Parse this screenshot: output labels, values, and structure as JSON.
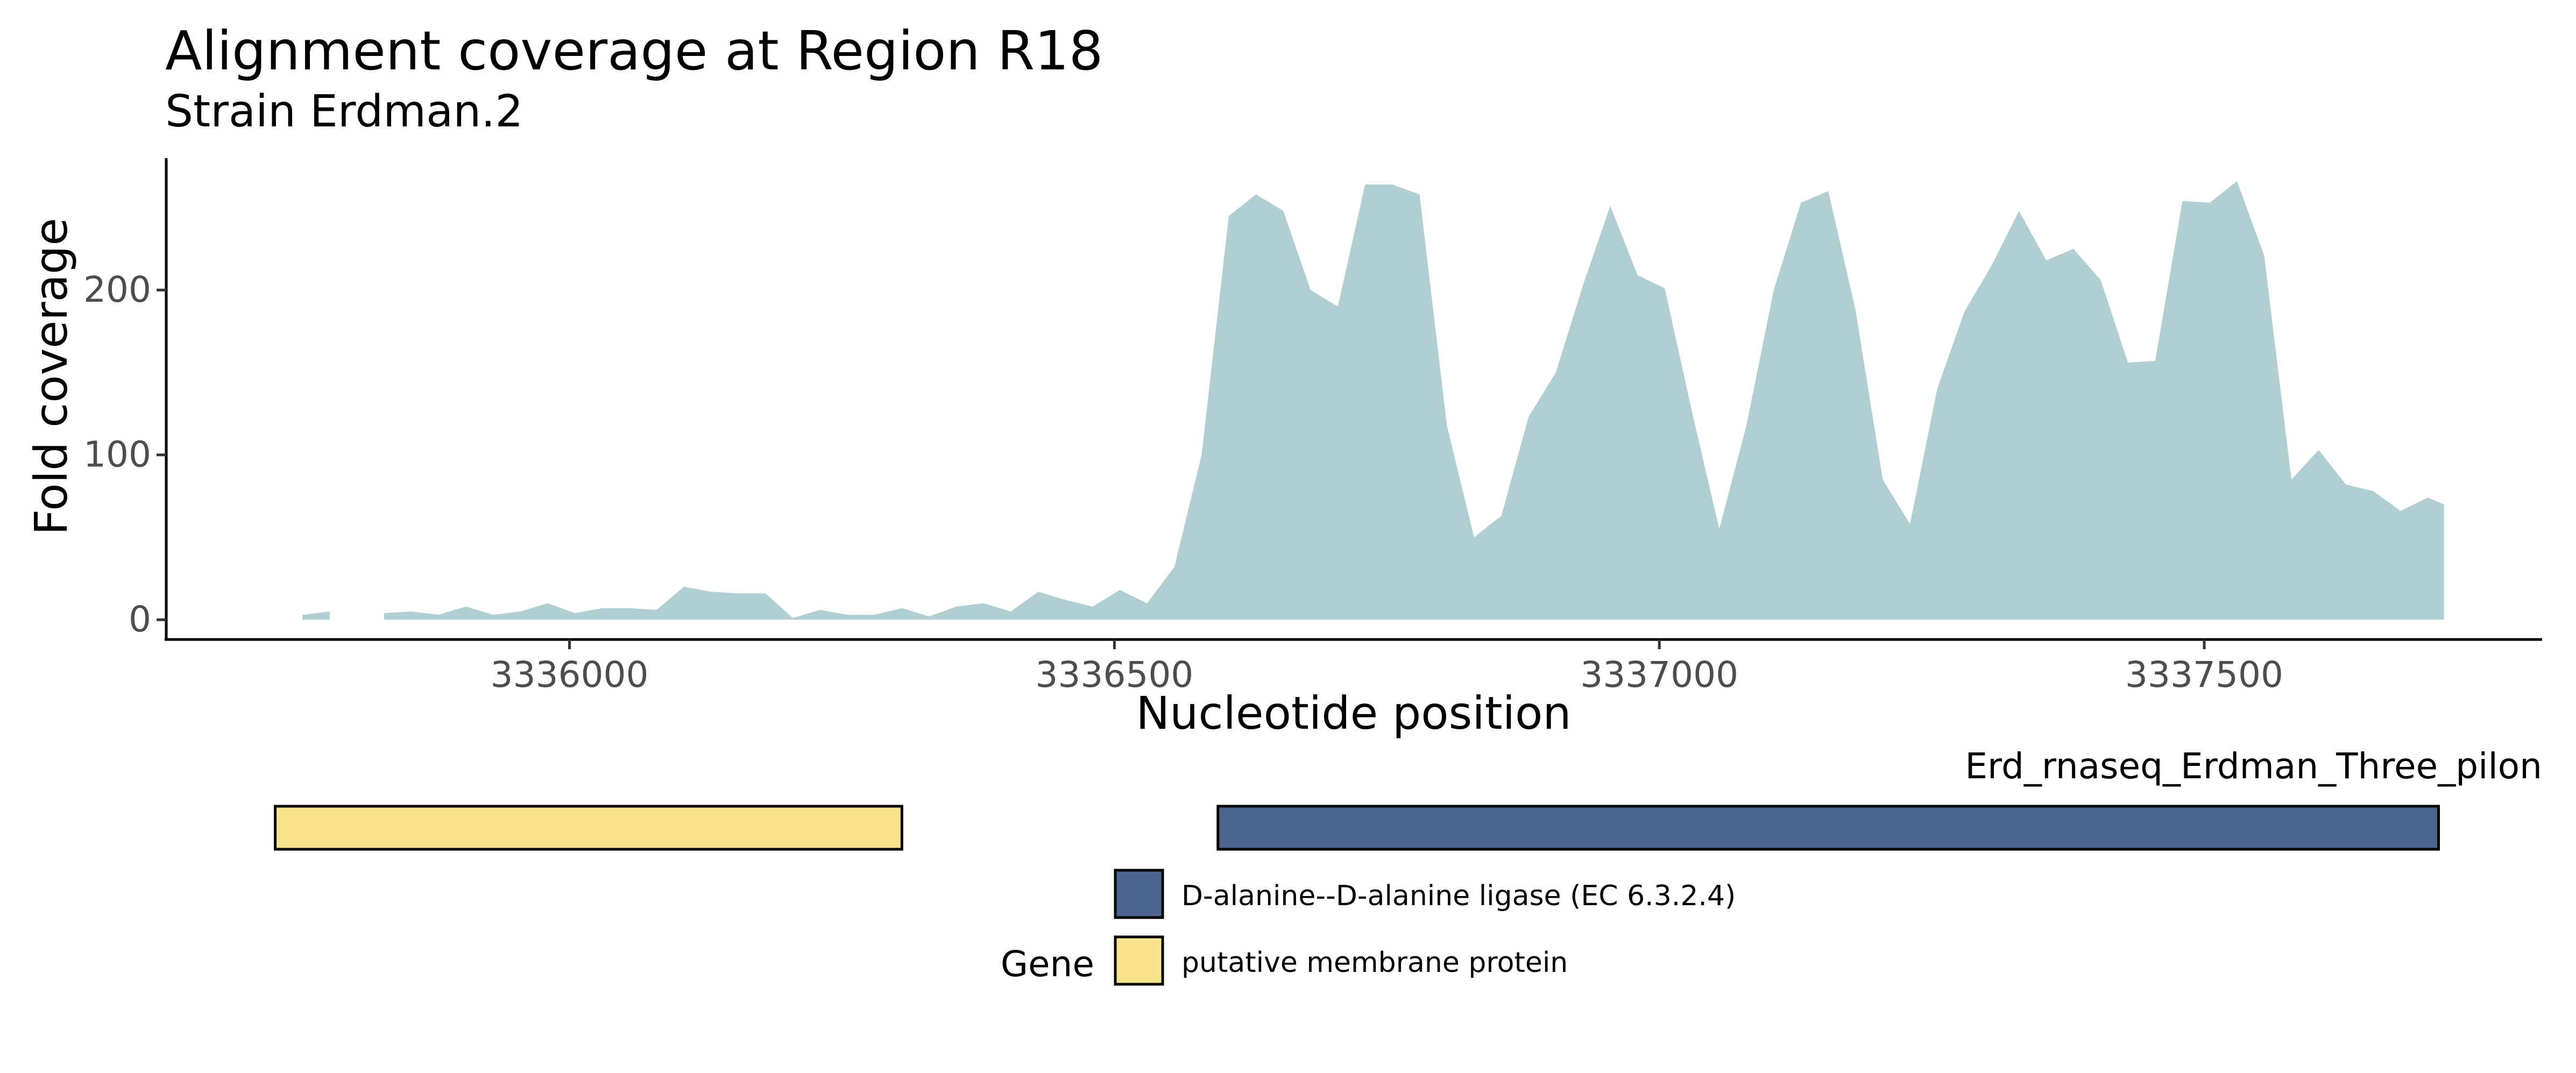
{
  "chart_data": {
    "type": "area",
    "title": "Alignment coverage at Region R18",
    "subtitle": "Strain Erdman.2",
    "xlabel": "Nucleotide position",
    "ylabel": "Fold coverage",
    "xlim": [
      3335630,
      3337810
    ],
    "ylim": [
      -12,
      280
    ],
    "x_ticks": [
      3336000,
      3336500,
      3337000,
      3337500
    ],
    "x_tick_labels": [
      "3336000",
      "3336500",
      "3337000",
      "3337500"
    ],
    "y_ticks": [
      0,
      100,
      200
    ],
    "y_tick_labels": [
      "0",
      "100",
      "200"
    ],
    "fill_color": "#b1cfd2",
    "segments": [
      {
        "x": [
          3335755,
          3335780
        ],
        "y": [
          3,
          5
        ]
      },
      {
        "x": [
          3335830,
          3335855,
          3335880,
          3335905,
          3335930,
          3335955,
          3335980,
          3336005,
          3336030,
          3336055,
          3336080,
          3336105,
          3336130,
          3336155,
          3336180,
          3336205,
          3336230,
          3336255,
          3336280,
          3336305,
          3336330,
          3336355,
          3336380,
          3336405,
          3336430,
          3336455,
          3336480,
          3336505,
          3336530,
          3336555,
          3336580,
          3336605,
          3336630,
          3336655,
          3336680,
          3336705,
          3336730,
          3336755,
          3336780,
          3336805,
          3336830,
          3336855,
          3336880,
          3336905,
          3336930,
          3336955,
          3336980,
          3337005,
          3337030,
          3337055,
          3337080,
          3337105,
          3337130,
          3337155,
          3337180,
          3337205,
          3337230,
          3337255,
          3337280,
          3337305,
          3337330,
          3337355,
          3337380,
          3337405,
          3337430,
          3337455,
          3337480,
          3337505,
          3337530,
          3337555,
          3337580,
          3337605,
          3337630,
          3337655,
          3337680,
          3337705,
          3337720
        ],
        "y": [
          4,
          5,
          3,
          8,
          3,
          5,
          10,
          4,
          7,
          7,
          6,
          20,
          17,
          16,
          16,
          1,
          6,
          3,
          3,
          7,
          2,
          8,
          10,
          5,
          17,
          12,
          8,
          18,
          10,
          32,
          100,
          245,
          258,
          248,
          200,
          190,
          264,
          264,
          258,
          118,
          50,
          63,
          123,
          150,
          203,
          251,
          209,
          201,
          126,
          55,
          118,
          200,
          253,
          260,
          188,
          85,
          58,
          140,
          187,
          215,
          248,
          218,
          225,
          206,
          156,
          157,
          254,
          253,
          266,
          221,
          85,
          103,
          82,
          78,
          66,
          74,
          70
        ]
      }
    ],
    "gene_track": {
      "track_label": "Erd_rnaseq_Erdman_Three_pilon",
      "genes": [
        {
          "start": 3335730,
          "end": 3336305,
          "category": "putative membrane protein",
          "color": "#f9e38b"
        },
        {
          "start": 3336595,
          "end": 3337715,
          "category": "D-alanine--D-alanine ligase (EC 6.3.2.4)",
          "color": "#4b658e"
        }
      ]
    },
    "legend": {
      "title": "Gene",
      "position": "bottom",
      "entries": [
        {
          "label": "D-alanine--D-alanine ligase (EC 6.3.2.4)",
          "color": "#4b658e"
        },
        {
          "label": "putative membrane protein",
          "color": "#f9e38b"
        }
      ]
    },
    "grid": false
  }
}
